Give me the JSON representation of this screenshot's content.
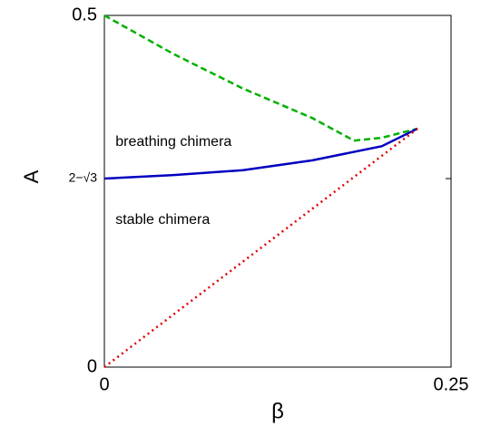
{
  "chart_data": {
    "type": "line",
    "xlabel": "β",
    "ylabel": "A",
    "xlim": [
      0,
      0.25
    ],
    "ylim": [
      0,
      0.5
    ],
    "xticks": [
      0,
      0.25
    ],
    "yticks": [
      0,
      {
        "value": 0.268,
        "label": "2−√3"
      },
      0.5
    ],
    "series": [
      {
        "color": "#00b000",
        "dash": "dashed",
        "x": [
          0,
          0.05,
          0.1,
          0.15,
          0.18,
          0.2,
          0.2258
        ],
        "values": [
          0.5,
          0.445,
          0.396,
          0.354,
          0.322,
          0.326,
          0.339
        ]
      },
      {
        "color": "#0000c0",
        "dash": "solid",
        "x": [
          0,
          0.05,
          0.1,
          0.15,
          0.2,
          0.2258
        ],
        "values": [
          0.268,
          0.273,
          0.28,
          0.294,
          0.314,
          0.339
        ]
      },
      {
        "color": "#e00000",
        "dash": "dotted",
        "x": [
          0,
          0.2258
        ],
        "values": [
          0,
          0.339
        ]
      }
    ],
    "annotations": [
      {
        "text": "breathing chimera",
        "x": 0.008,
        "y": 0.32
      },
      {
        "text": "stable chimera",
        "x": 0.008,
        "y": 0.209
      }
    ]
  }
}
